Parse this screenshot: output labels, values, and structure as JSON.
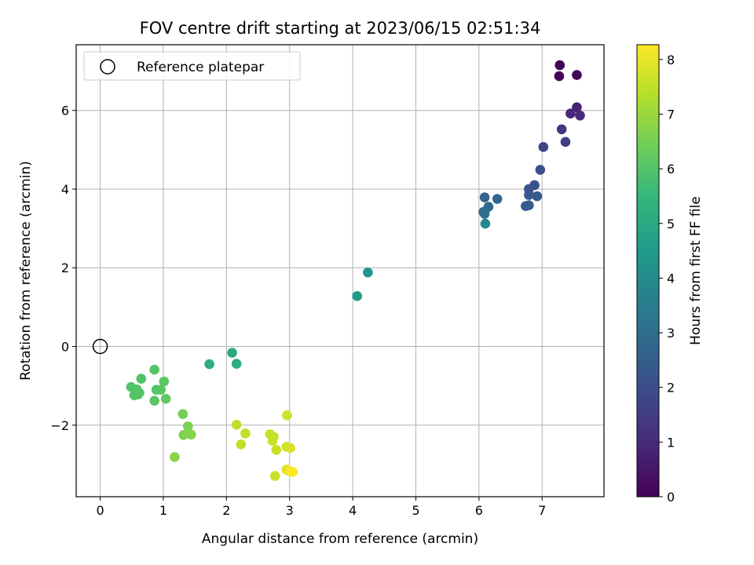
{
  "chart_data": {
    "type": "scatter",
    "title": "FOV centre drift starting at 2023/06/15 02:51:34",
    "xlabel": "Angular distance from reference (arcmin)",
    "ylabel": "Rotation from reference (arcmin)",
    "xlim": [
      -0.38,
      7.98
    ],
    "ylim": [
      -3.82,
      7.67
    ],
    "xticks": [
      0,
      1,
      2,
      3,
      4,
      5,
      6,
      7
    ],
    "yticks": [
      -2,
      0,
      2,
      4,
      6
    ],
    "ytick_labels": [
      "−2",
      "0",
      "2",
      "4",
      "6"
    ],
    "grid": true,
    "legend": {
      "placement": "upper-left",
      "entries": [
        {
          "label": "Reference platepar",
          "marker": "open-circle"
        }
      ]
    },
    "reference_point": {
      "x": 0,
      "y": 0
    },
    "colorbar": {
      "label": "Hours from first FF file",
      "colormap": "viridis",
      "range": [
        0,
        8.27
      ],
      "ticks": [
        0,
        1,
        2,
        3,
        4,
        5,
        6,
        7,
        8
      ]
    },
    "colors": {
      "viridis": [
        "#440154",
        "#482878",
        "#3e4989",
        "#31688e",
        "#26828e",
        "#1f9e89",
        "#35b779",
        "#6ece58",
        "#b5de2b",
        "#fde725"
      ]
    },
    "points": [
      {
        "x": 7.28,
        "y": 7.15,
        "c": 0.0
      },
      {
        "x": 7.27,
        "y": 6.87,
        "c": 0.1
      },
      {
        "x": 7.55,
        "y": 6.9,
        "c": 0.2
      },
      {
        "x": 7.55,
        "y": 6.08,
        "c": 0.8
      },
      {
        "x": 7.45,
        "y": 5.92,
        "c": 0.9
      },
      {
        "x": 7.6,
        "y": 5.87,
        "c": 1.0
      },
      {
        "x": 7.31,
        "y": 5.52,
        "c": 1.3
      },
      {
        "x": 7.37,
        "y": 5.2,
        "c": 1.5
      },
      {
        "x": 7.02,
        "y": 5.07,
        "c": 1.7
      },
      {
        "x": 6.97,
        "y": 4.49,
        "c": 2.0
      },
      {
        "x": 6.88,
        "y": 4.1,
        "c": 2.1
      },
      {
        "x": 6.79,
        "y": 4.0,
        "c": 2.2
      },
      {
        "x": 6.79,
        "y": 3.85,
        "c": 2.3
      },
      {
        "x": 6.92,
        "y": 3.82,
        "c": 2.3
      },
      {
        "x": 6.74,
        "y": 3.57,
        "c": 2.4
      },
      {
        "x": 6.79,
        "y": 3.59,
        "c": 2.4
      },
      {
        "x": 6.09,
        "y": 3.79,
        "c": 2.6
      },
      {
        "x": 6.29,
        "y": 3.75,
        "c": 2.7
      },
      {
        "x": 6.15,
        "y": 3.55,
        "c": 2.8
      },
      {
        "x": 6.07,
        "y": 3.42,
        "c": 2.9
      },
      {
        "x": 6.09,
        "y": 3.37,
        "c": 3.0
      },
      {
        "x": 6.1,
        "y": 3.12,
        "c": 3.9
      },
      {
        "x": 4.24,
        "y": 1.88,
        "c": 4.3
      },
      {
        "x": 4.07,
        "y": 1.28,
        "c": 4.5
      },
      {
        "x": 2.09,
        "y": -0.16,
        "c": 5.0
      },
      {
        "x": 2.16,
        "y": -0.44,
        "c": 5.1
      },
      {
        "x": 1.73,
        "y": -0.45,
        "c": 5.2
      },
      {
        "x": 0.86,
        "y": -0.59,
        "c": 6.0
      },
      {
        "x": 0.65,
        "y": -0.82,
        "c": 6.0
      },
      {
        "x": 1.01,
        "y": -0.89,
        "c": 6.1
      },
      {
        "x": 0.49,
        "y": -1.03,
        "c": 6.0
      },
      {
        "x": 0.58,
        "y": -1.09,
        "c": 6.0
      },
      {
        "x": 0.89,
        "y": -1.1,
        "c": 6.0
      },
      {
        "x": 0.96,
        "y": -1.1,
        "c": 6.1
      },
      {
        "x": 0.62,
        "y": -1.18,
        "c": 6.0
      },
      {
        "x": 0.54,
        "y": -1.24,
        "c": 6.0
      },
      {
        "x": 0.6,
        "y": -1.22,
        "c": 6.0
      },
      {
        "x": 1.04,
        "y": -1.33,
        "c": 6.2
      },
      {
        "x": 0.86,
        "y": -1.38,
        "c": 6.1
      },
      {
        "x": 1.31,
        "y": -1.72,
        "c": 6.5
      },
      {
        "x": 1.39,
        "y": -2.03,
        "c": 6.6
      },
      {
        "x": 1.32,
        "y": -2.25,
        "c": 6.6
      },
      {
        "x": 1.44,
        "y": -2.24,
        "c": 6.7
      },
      {
        "x": 1.18,
        "y": -2.81,
        "c": 6.8
      },
      {
        "x": 2.16,
        "y": -1.99,
        "c": 7.5
      },
      {
        "x": 2.3,
        "y": -2.21,
        "c": 7.5
      },
      {
        "x": 2.23,
        "y": -2.49,
        "c": 7.5
      },
      {
        "x": 2.69,
        "y": -2.23,
        "c": 7.6
      },
      {
        "x": 2.75,
        "y": -2.3,
        "c": 7.6
      },
      {
        "x": 2.73,
        "y": -2.4,
        "c": 7.6
      },
      {
        "x": 2.79,
        "y": -2.63,
        "c": 7.6
      },
      {
        "x": 2.96,
        "y": -1.75,
        "c": 7.7
      },
      {
        "x": 2.95,
        "y": -2.55,
        "c": 7.7
      },
      {
        "x": 3.01,
        "y": -2.58,
        "c": 7.8
      },
      {
        "x": 2.77,
        "y": -3.29,
        "c": 7.6
      },
      {
        "x": 2.95,
        "y": -3.13,
        "c": 7.9
      },
      {
        "x": 3.0,
        "y": -3.17,
        "c": 8.1
      },
      {
        "x": 3.05,
        "y": -3.19,
        "c": 8.27
      }
    ]
  }
}
